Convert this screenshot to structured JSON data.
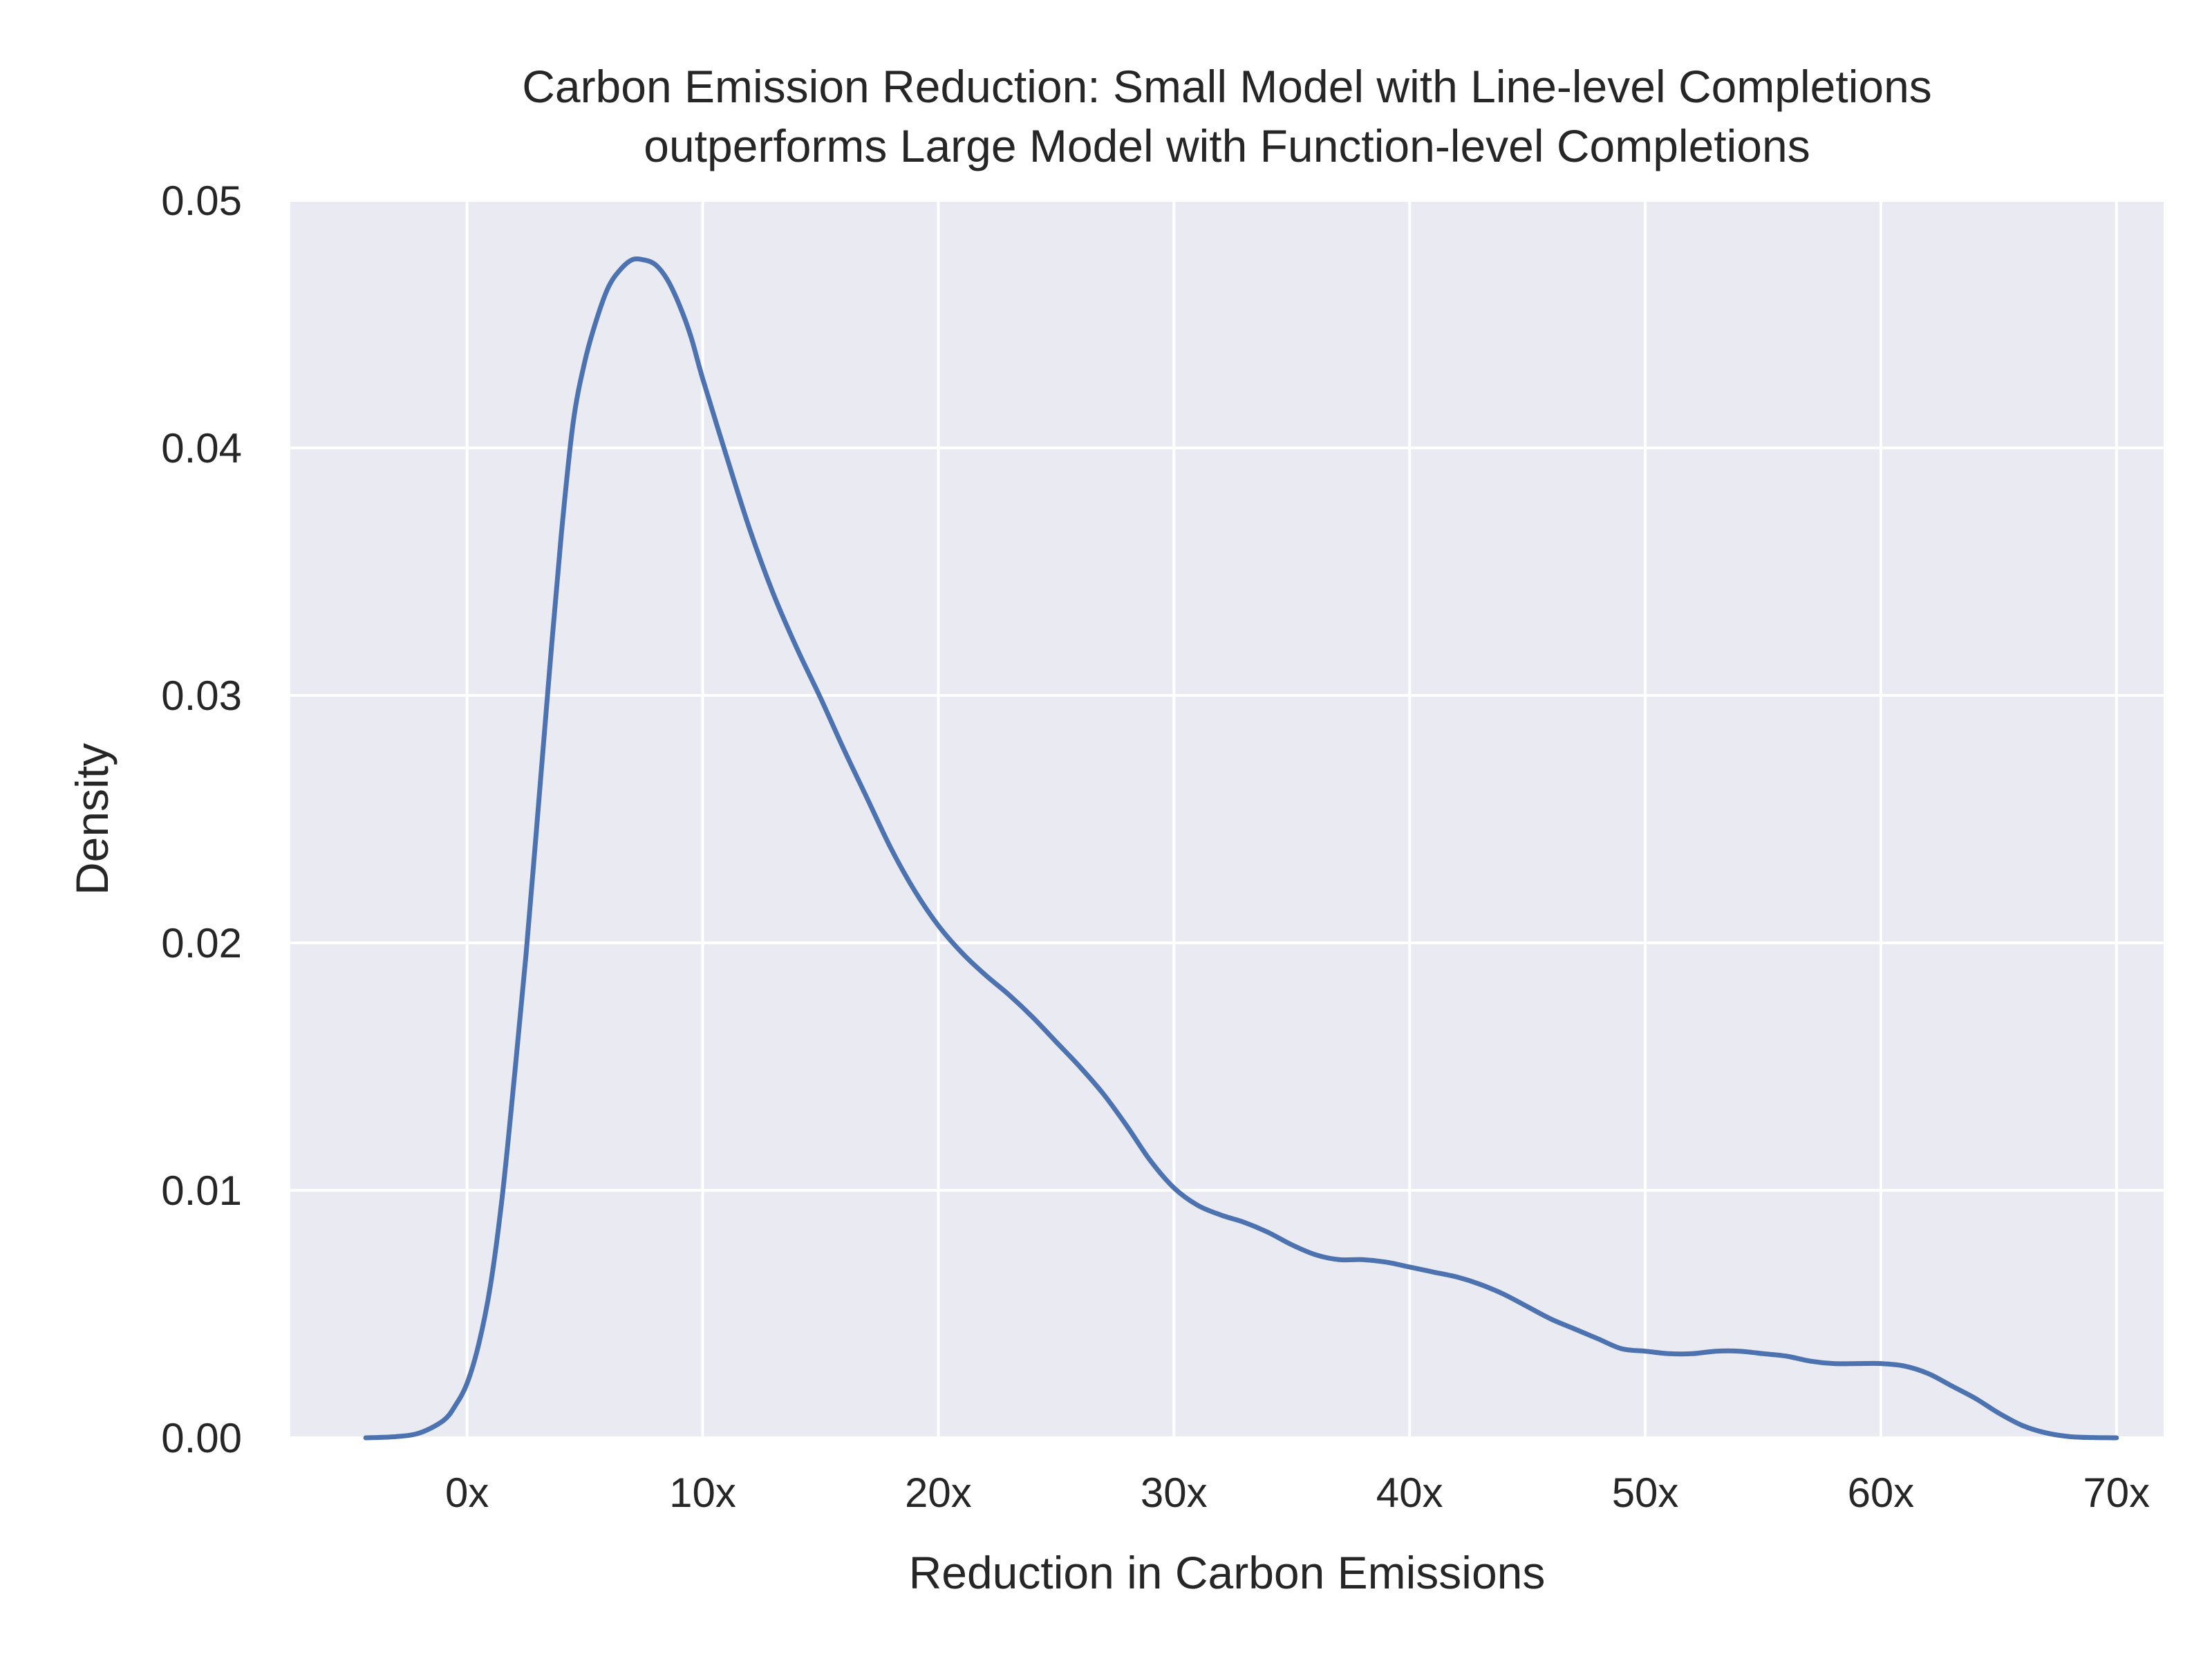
{
  "chart_data": {
    "type": "line",
    "title_lines": [
      "Carbon Emission Reduction: Small Model with Line-level Completions",
      "outperforms Large Model with Function-level Completions"
    ],
    "xlabel": "Reduction in Carbon Emissions",
    "ylabel": "Density",
    "xlim": [
      -7.5,
      72.0
    ],
    "ylim": [
      0,
      0.05
    ],
    "x_ticks": [
      0,
      10,
      20,
      30,
      40,
      50,
      60,
      70
    ],
    "x_tick_labels": [
      "0x",
      "10x",
      "20x",
      "30x",
      "40x",
      "50x",
      "60x",
      "70x"
    ],
    "y_ticks": [
      0,
      0.01,
      0.02,
      0.03,
      0.04,
      0.05
    ],
    "y_tick_labels": [
      "0.00",
      "0.01",
      "0.02",
      "0.03",
      "0.04",
      "0.05"
    ],
    "grid": true,
    "colors": {
      "background": "#eaeaf2",
      "grid": "#ffffff",
      "line": "#4c72b0",
      "text": "#262626"
    },
    "series": [
      {
        "x": [
          -4.3,
          -3,
          -2,
          -1,
          -0.5,
          0,
          0.5,
          1,
          1.5,
          2,
          2.5,
          3,
          3.5,
          4,
          4.5,
          5,
          5.5,
          6,
          6.5,
          7,
          7.5,
          8,
          8.5,
          9,
          9.5,
          10,
          11,
          12,
          13,
          14,
          15,
          16,
          17,
          18,
          19,
          20,
          21,
          22,
          23,
          24,
          25,
          26,
          27,
          28,
          29,
          30,
          31,
          32,
          33,
          34,
          35,
          36,
          37,
          38,
          39,
          40,
          41,
          42,
          43,
          44,
          45,
          46,
          47,
          48,
          49,
          50,
          51,
          52,
          53,
          54,
          55,
          56,
          57,
          58,
          59,
          60,
          61,
          62,
          63,
          64,
          65,
          66,
          67,
          68,
          69,
          70
        ],
        "y": [
          0.0,
          5e-05,
          0.0002,
          0.0007,
          0.0013,
          0.0022,
          0.0038,
          0.0062,
          0.0098,
          0.0145,
          0.0195,
          0.0252,
          0.031,
          0.0365,
          0.041,
          0.0435,
          0.0452,
          0.0465,
          0.0472,
          0.0476,
          0.0476,
          0.0474,
          0.0468,
          0.0458,
          0.0445,
          0.0428,
          0.0397,
          0.0367,
          0.0341,
          0.0319,
          0.0299,
          0.0278,
          0.0258,
          0.0238,
          0.0221,
          0.0207,
          0.0196,
          0.0187,
          0.0179,
          0.017,
          0.016,
          0.015,
          0.0139,
          0.0126,
          0.0112,
          0.0101,
          0.0094,
          0.009,
          0.0087,
          0.0083,
          0.0078,
          0.0074,
          0.0072,
          0.0072,
          0.0071,
          0.0069,
          0.0067,
          0.0065,
          0.0062,
          0.0058,
          0.0053,
          0.0048,
          0.0044,
          0.004,
          0.0036,
          0.0035,
          0.0034,
          0.0034,
          0.0035,
          0.0035,
          0.0034,
          0.0033,
          0.0031,
          0.003,
          0.003,
          0.003,
          0.0029,
          0.0026,
          0.0021,
          0.0016,
          0.001,
          0.0005,
          0.0002,
          5e-05,
          1e-05,
          0.0
        ]
      }
    ]
  }
}
